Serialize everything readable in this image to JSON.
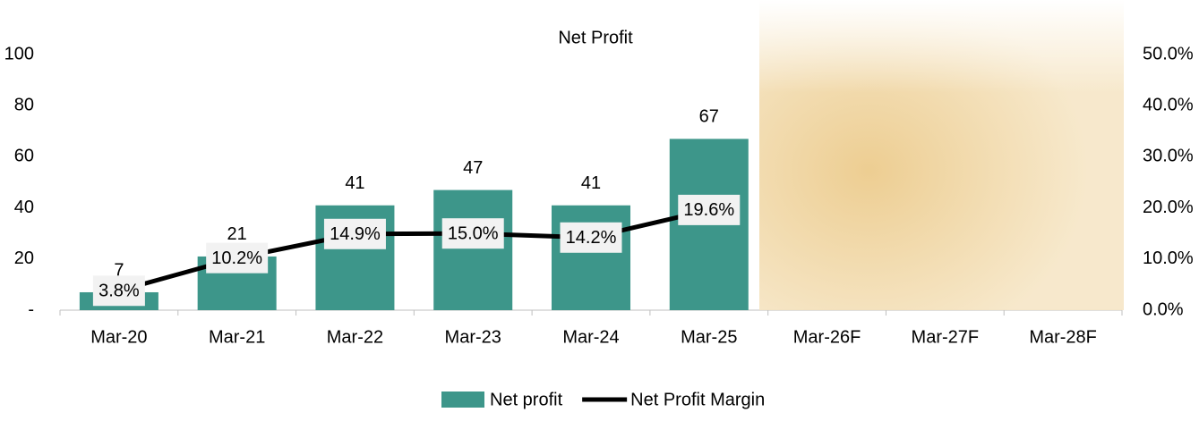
{
  "chart_data": {
    "type": "combo",
    "title": "Net Profit",
    "categories": [
      "Mar-20",
      "Mar-21",
      "Mar-22",
      "Mar-23",
      "Mar-24",
      "Mar-25",
      "Mar-26F",
      "Mar-27F",
      "Mar-28F"
    ],
    "series": [
      {
        "name": "Net profit",
        "type": "bar",
        "color": "#3d968a",
        "values": [
          7,
          21,
          41,
          47,
          41,
          67,
          null,
          null,
          null
        ]
      },
      {
        "name": "Net Profit Margin",
        "type": "line",
        "color": "#000000",
        "axis": "y2",
        "values": [
          3.8,
          10.2,
          14.9,
          15.0,
          14.2,
          19.6,
          null,
          null,
          null
        ],
        "value_labels": [
          "3.8%",
          "10.2%",
          "14.9%",
          "15.0%",
          "14.2%",
          "19.6%",
          null,
          null,
          null
        ]
      }
    ],
    "ylim": [
      0,
      100
    ],
    "yticks": [
      {
        "value": 0,
        "label": "-"
      },
      20,
      40,
      60,
      80,
      100
    ],
    "y2lim": [
      0,
      50
    ],
    "y2ticks": [
      {
        "value": 0,
        "label": "0.0%"
      },
      {
        "value": 10,
        "label": "10.0%"
      },
      {
        "value": 20,
        "label": "20.0%"
      },
      {
        "value": 30,
        "label": "30.0%"
      },
      {
        "value": 40,
        "label": "40.0%"
      },
      {
        "value": 50,
        "label": "50.0%"
      }
    ],
    "legend": "bottom"
  }
}
